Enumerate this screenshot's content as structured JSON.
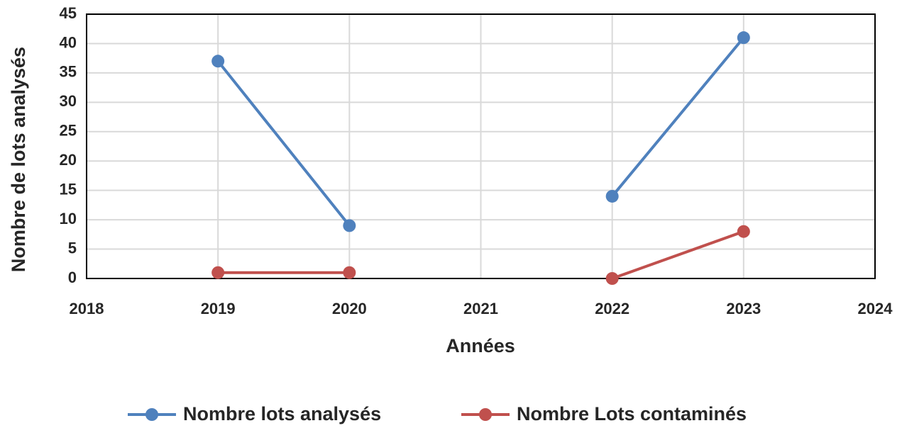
{
  "chart_data": {
    "type": "line",
    "x": [
      2019,
      2020,
      2021,
      2022,
      2023
    ],
    "series": [
      {
        "name": "Nombre lots analysés",
        "color": "#4f81bd",
        "values": [
          37,
          9,
          null,
          14,
          41
        ]
      },
      {
        "name": "Nombre Lots contaminés",
        "color": "#c0504d",
        "values": [
          1,
          1,
          null,
          0,
          8
        ]
      }
    ],
    "xlim": [
      2018,
      2024
    ],
    "xticks": [
      2018,
      2019,
      2020,
      2021,
      2022,
      2023,
      2024
    ],
    "ylim": [
      0,
      45
    ],
    "yticks": [
      0,
      5,
      10,
      15,
      20,
      25,
      30,
      35,
      40,
      45
    ],
    "xlabel": "Années",
    "ylabel": "Nombre de lots analysés",
    "grid": true,
    "legend": "bottom"
  }
}
